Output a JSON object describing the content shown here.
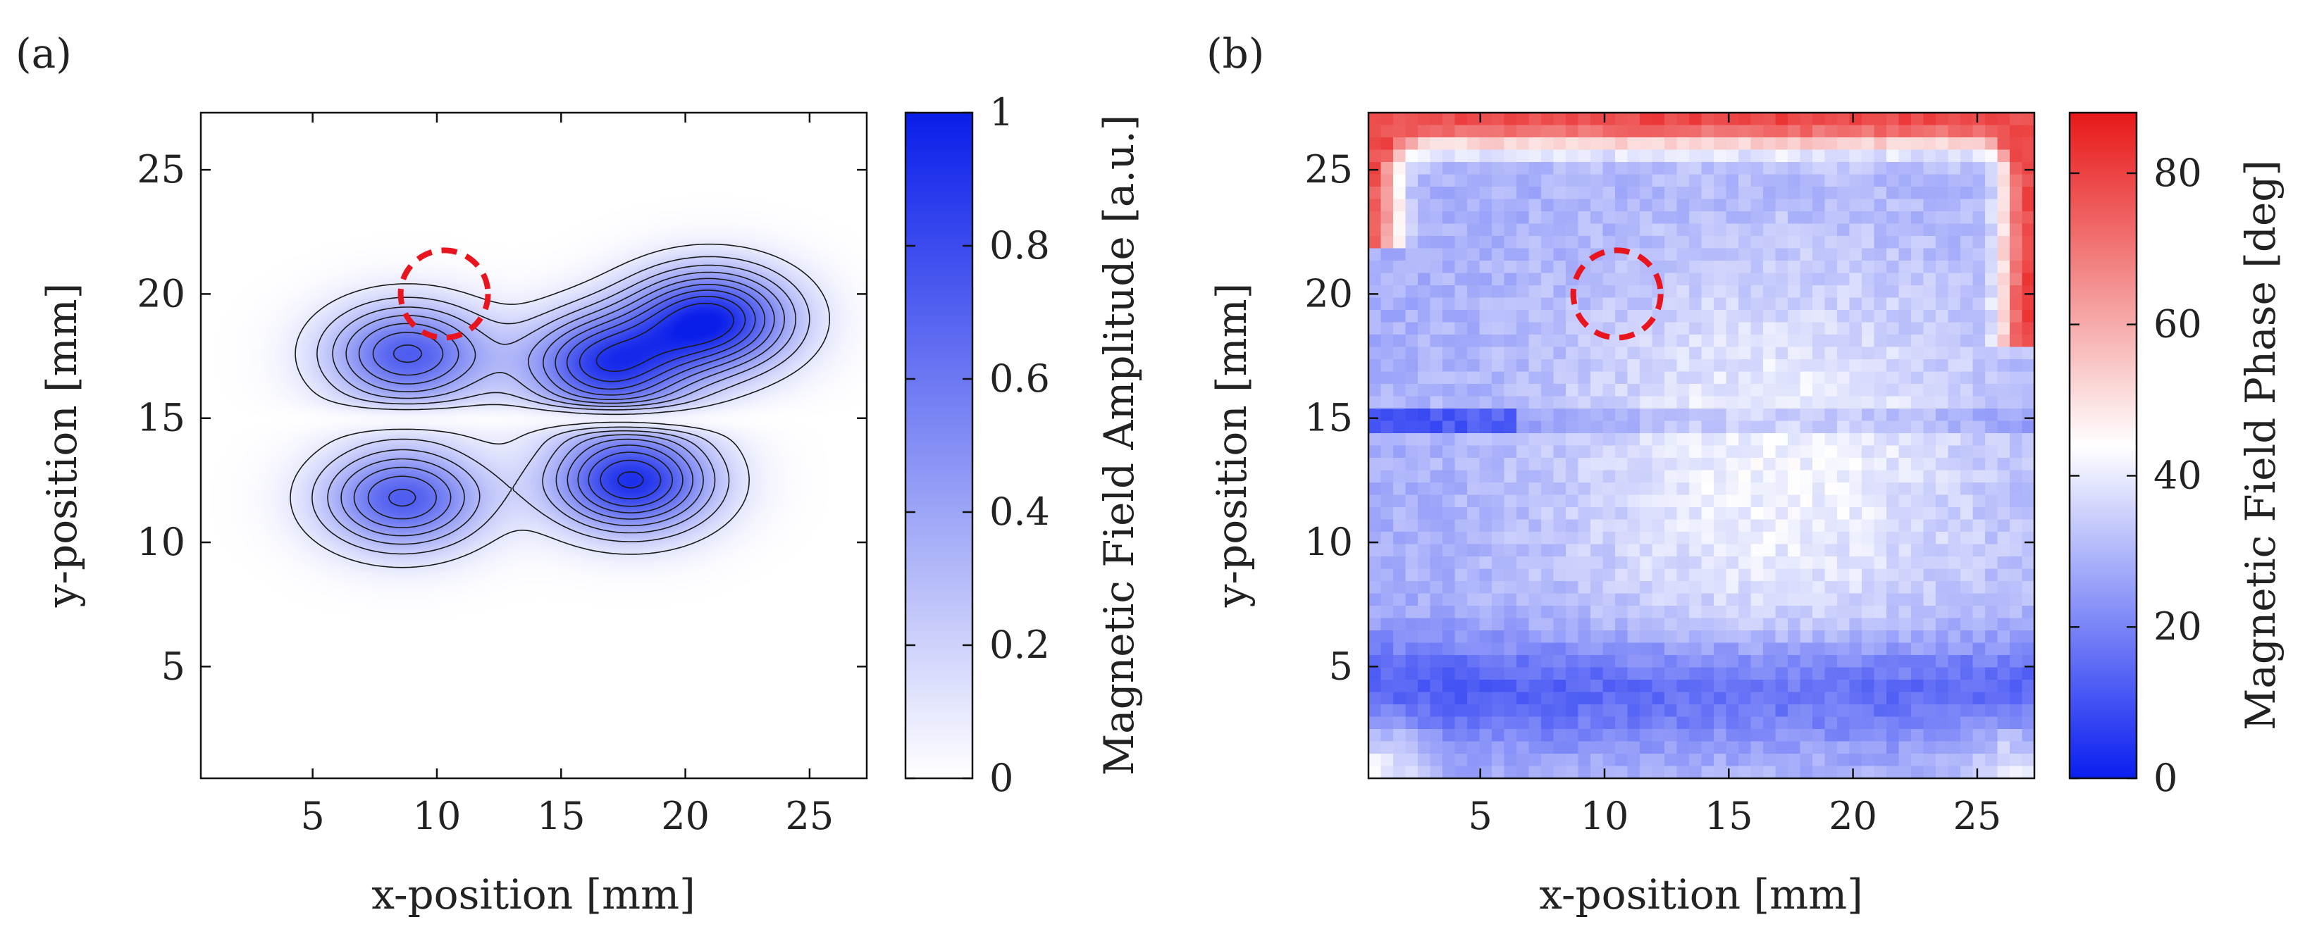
{
  "figure": {
    "panel_a_label": "(a)",
    "panel_b_label": "(b)"
  },
  "chart_data": [
    {
      "type": "heatmap",
      "subtype": "contour",
      "panel": "(a)",
      "title": "",
      "xlabel": "x-position [mm]",
      "ylabel": "y-position [mm]",
      "xlim": [
        0.5,
        27.3
      ],
      "ylim": [
        0.5,
        27.3
      ],
      "xticks": [
        5,
        10,
        15,
        20,
        25
      ],
      "yticks": [
        5,
        10,
        15,
        20,
        25
      ],
      "colorbar": {
        "label": "Magnetic Field Amplitude [a.u.]",
        "range": [
          0,
          1
        ],
        "ticks": [
          0,
          0.2,
          0.4,
          0.6,
          0.8,
          1
        ],
        "tick_labels": [
          "0",
          "0.2",
          "0.4",
          "0.6",
          "0.8",
          "1"
        ],
        "low_color": "#ffffff",
        "high_color": "#0a1eea"
      },
      "contour_levels": [
        0.1,
        0.2,
        0.3,
        0.4,
        0.5,
        0.6,
        0.7,
        0.8,
        0.9
      ],
      "peaks": [
        {
          "x": 8.8,
          "y": 17.6,
          "amplitude": 0.72
        },
        {
          "x": 16.8,
          "y": 17.2,
          "amplitude": 0.85
        },
        {
          "x": 21.0,
          "y": 19.0,
          "amplitude": 0.95
        },
        {
          "x": 8.6,
          "y": 11.8,
          "amplitude": 0.72
        },
        {
          "x": 17.8,
          "y": 12.5,
          "amplitude": 0.92
        }
      ],
      "annotation": {
        "shape": "dashed circle",
        "center_x": 10.3,
        "center_y": 20.0,
        "color": "#e8141e"
      }
    },
    {
      "type": "heatmap",
      "panel": "(b)",
      "title": "",
      "xlabel": "x-position [mm]",
      "ylabel": "y-position [mm]",
      "xlim": [
        0.5,
        27.3
      ],
      "ylim": [
        0.5,
        27.3
      ],
      "xticks": [
        5,
        10,
        15,
        20,
        25
      ],
      "yticks": [
        5,
        10,
        15,
        20,
        25
      ],
      "colorbar": {
        "label": "Magnetic Field Phase [deg]",
        "range": [
          0,
          88
        ],
        "ticks": [
          0,
          20,
          40,
          60,
          80
        ],
        "tick_labels": [
          "0",
          "20",
          "40",
          "60",
          "80"
        ],
        "low_color": "#0a1ef0",
        "mid_color": "#ffffff",
        "high_color": "#e81818"
      },
      "grid_resolution": [
        54,
        54
      ],
      "features": [
        {
          "description": "high phase band along top edge",
          "y_range": [
            24.5,
            27.3
          ],
          "phase": 80
        },
        {
          "description": "horizontal discontinuity near y",
          "y": 14.8,
          "x_range": [
            0.5,
            27.3
          ]
        },
        {
          "description": "low phase band near bottom",
          "y_range": [
            2,
            6
          ],
          "phase": 10
        }
      ],
      "annotation": {
        "shape": "dashed circle",
        "center_x": 10.5,
        "center_y": 20.0,
        "color": "#e8141e"
      }
    }
  ]
}
